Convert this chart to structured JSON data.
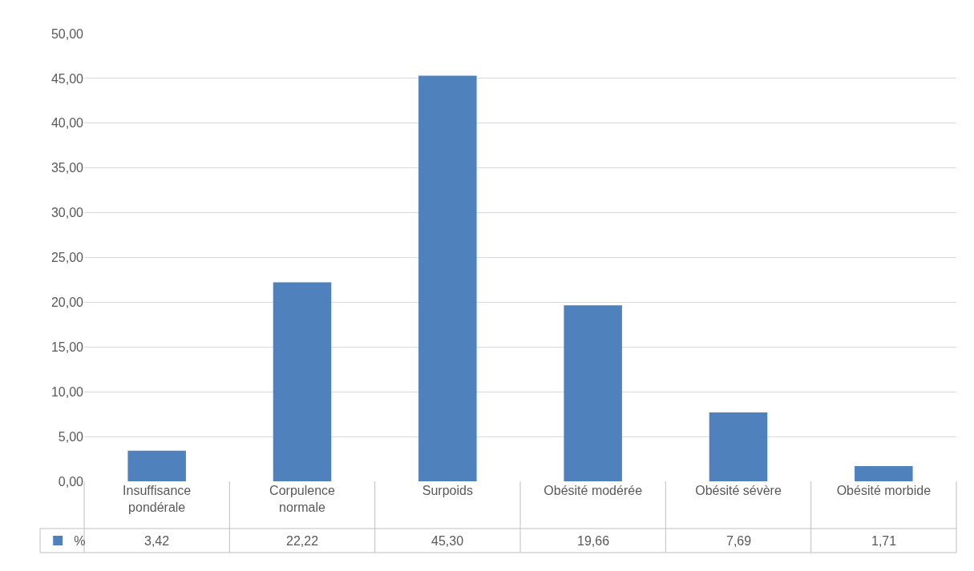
{
  "chart_data": {
    "type": "bar",
    "categories": [
      "Insuffisance pondérale",
      "Corpulence normale",
      "Surpoids",
      "Obésité modérée",
      "Obésité sévère",
      "Obésité morbide"
    ],
    "series": [
      {
        "name": "%",
        "color": "#4f81bd",
        "values": [
          3.42,
          22.22,
          45.3,
          19.66,
          7.69,
          1.71
        ],
        "value_labels": [
          "3,42",
          "22,22",
          "45,30",
          "19,66",
          "7,69",
          "1,71"
        ]
      }
    ],
    "ylim": [
      0,
      50
    ],
    "yticks": [
      {
        "value": 0,
        "label": "0,00"
      },
      {
        "value": 5,
        "label": "5,00"
      },
      {
        "value": 10,
        "label": "10,00"
      },
      {
        "value": 15,
        "label": "15,00"
      },
      {
        "value": 20,
        "label": "20,00"
      },
      {
        "value": 25,
        "label": "25,00"
      },
      {
        "value": 30,
        "label": "30,00"
      },
      {
        "value": 35,
        "label": "35,00"
      },
      {
        "value": 40,
        "label": "40,00"
      },
      {
        "value": 45,
        "label": "45,00"
      },
      {
        "value": 50,
        "label": "50,00"
      }
    ],
    "grid": "y",
    "legend": "bottom left"
  }
}
